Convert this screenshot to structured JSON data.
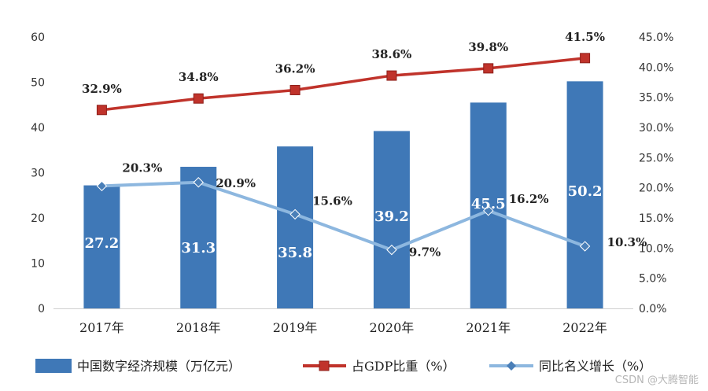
{
  "chart_data": {
    "type": "bar+line",
    "categories": [
      "2017年",
      "2018年",
      "2019年",
      "2020年",
      "2021年",
      "2022年"
    ],
    "left_axis": {
      "ylim": [
        0,
        60
      ],
      "ticks": [
        "0",
        "10",
        "20",
        "30",
        "40",
        "50",
        "60"
      ]
    },
    "right_axis": {
      "ylim": [
        0,
        45
      ],
      "ticks": [
        "0.0%",
        "5.0%",
        "10.0%",
        "15.0%",
        "20.0%",
        "25.0%",
        "30.0%",
        "35.0%",
        "40.0%",
        "45.0%"
      ]
    },
    "series": [
      {
        "name": "中国数字经济规模（万亿元）",
        "kind": "bar",
        "axis": "left",
        "color": "#3f78b7",
        "values": [
          27.2,
          31.3,
          35.8,
          39.2,
          45.5,
          50.2
        ],
        "labels": [
          "27.2",
          "31.3",
          "35.8",
          "39.2",
          "45.5",
          "50.2"
        ]
      },
      {
        "name": "占GDP比重（%）",
        "kind": "line",
        "axis": "right",
        "color": "#c0332b",
        "marker": "square",
        "values": [
          32.9,
          34.8,
          36.2,
          38.6,
          39.8,
          41.5
        ],
        "labels": [
          "32.9%",
          "34.8%",
          "36.2%",
          "38.6%",
          "39.8%",
          "41.5%"
        ]
      },
      {
        "name": "同比名义增长（%）",
        "kind": "line",
        "axis": "right",
        "color": "#8db7df",
        "marker": "diamond",
        "values": [
          20.3,
          20.9,
          15.6,
          9.7,
          16.2,
          10.3
        ],
        "labels": [
          "20.3%",
          "20.9%",
          "15.6%",
          "9.7%",
          "16.2%",
          "10.3%"
        ]
      }
    ],
    "legend_position": "bottom",
    "grid": false
  },
  "watermark": "CSDN @大腾智能"
}
